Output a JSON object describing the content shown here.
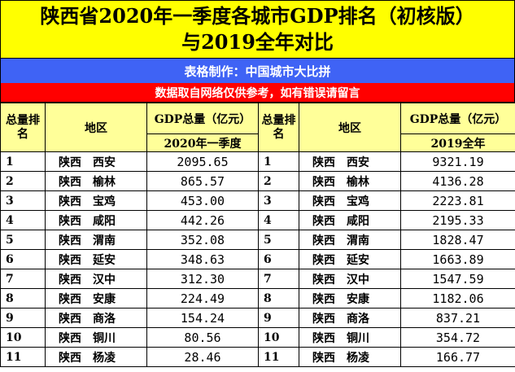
{
  "title_line1": "陕西省2020年一季度各城市GDP排名（初核版）",
  "title_line2": "与2019全年对比",
  "maker": "表格制作：中国城市大比拼",
  "disclaimer": "数据取自网络仅供参考，如有错误请留言",
  "headers": {
    "rank": "总量排名",
    "region": "地区",
    "gdp": "GDP总量（亿元）",
    "period_left": "2020年一季度",
    "period_right": "2019全年"
  },
  "rows": [
    {
      "rank_l": "1",
      "region_l": "陕西　西安",
      "val_l": "2095.65",
      "rank_r": "1",
      "region_r": "陕西　西安",
      "val_r": "9321.19"
    },
    {
      "rank_l": "2",
      "region_l": "陕西　榆林",
      "val_l": "865.57",
      "rank_r": "2",
      "region_r": "陕西　榆林",
      "val_r": "4136.28"
    },
    {
      "rank_l": "3",
      "region_l": "陕西　宝鸡",
      "val_l": "453.00",
      "rank_r": "3",
      "region_r": "陕西　宝鸡",
      "val_r": "2223.81"
    },
    {
      "rank_l": "4",
      "region_l": "陕西　咸阳",
      "val_l": "442.26",
      "rank_r": "4",
      "region_r": "陕西　咸阳",
      "val_r": "2195.33"
    },
    {
      "rank_l": "5",
      "region_l": "陕西　渭南",
      "val_l": "352.08",
      "rank_r": "5",
      "region_r": "陕西　渭南",
      "val_r": "1828.47"
    },
    {
      "rank_l": "6",
      "region_l": "陕西　延安",
      "val_l": "348.63",
      "rank_r": "6",
      "region_r": "陕西　延安",
      "val_r": "1663.89"
    },
    {
      "rank_l": "7",
      "region_l": "陕西　汉中",
      "val_l": "312.30",
      "rank_r": "7",
      "region_r": "陕西　汉中",
      "val_r": "1547.59"
    },
    {
      "rank_l": "8",
      "region_l": "陕西　安康",
      "val_l": "224.49",
      "rank_r": "8",
      "region_r": "陕西　安康",
      "val_r": "1182.06"
    },
    {
      "rank_l": "9",
      "region_l": "陕西　商洛",
      "val_l": "154.24",
      "rank_r": "9",
      "region_r": "陕西　商洛",
      "val_r": "837.21"
    },
    {
      "rank_l": "10",
      "region_l": "陕西　铜川",
      "val_l": "80.56",
      "rank_r": "10",
      "region_r": "陕西　铜川",
      "val_r": "354.72"
    },
    {
      "rank_l": "11",
      "region_l": "陕西　杨凌",
      "val_l": "28.46",
      "rank_r": "11",
      "region_r": "陕西　杨凌",
      "val_r": "166.77"
    }
  ],
  "colors": {
    "title_bg": "#ffff00",
    "maker_bg": "#3f63f5",
    "note_bg": "#ff0000",
    "header_bg": "#ffff99"
  }
}
